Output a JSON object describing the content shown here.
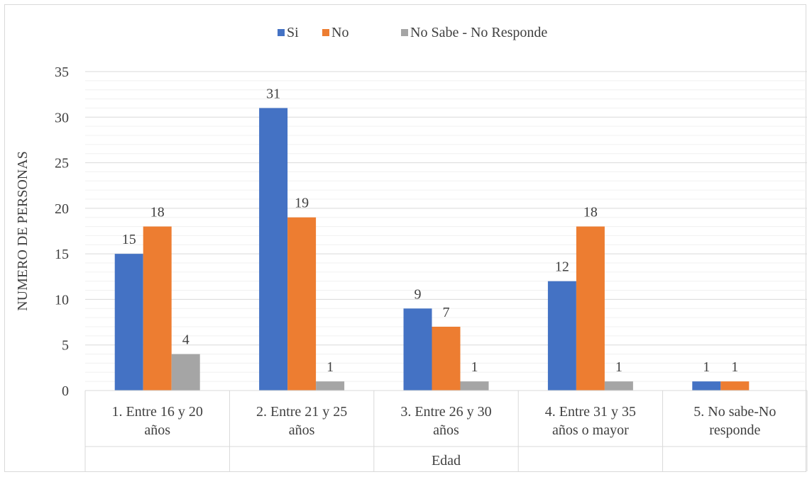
{
  "chart_data": {
    "type": "bar",
    "categories": [
      [
        "1. Entre 16 y 20",
        "años"
      ],
      [
        "2. Entre 21 y 25",
        "años"
      ],
      [
        "3. Entre 26 y 30",
        "años"
      ],
      [
        "4. Entre 31 y 35",
        "años o mayor"
      ],
      [
        "5. No sabe-No",
        "responde"
      ]
    ],
    "series": [
      {
        "name": "Si",
        "color": "#4472c4",
        "values": [
          15,
          31,
          9,
          12,
          1
        ]
      },
      {
        "name": "No",
        "color": "#ed7d31",
        "values": [
          18,
          19,
          7,
          18,
          1
        ]
      },
      {
        "name": "No Sabe - No Responde",
        "color": "#a5a5a5",
        "values": [
          4,
          1,
          1,
          1,
          null
        ]
      }
    ],
    "ylabel": "NUMERO DE PERSONAS",
    "xlabel": "Edad",
    "ylim": [
      0,
      35
    ],
    "yticks": [
      0,
      5,
      10,
      15,
      20,
      25,
      30,
      35
    ],
    "grid": true,
    "minor_grid": true,
    "legend_position": "top",
    "data_labels": true
  }
}
